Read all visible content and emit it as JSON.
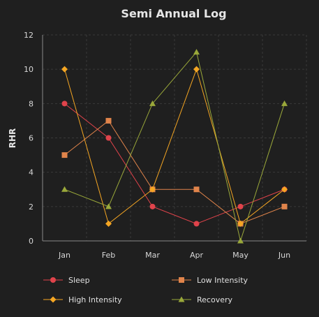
{
  "chart_data": {
    "type": "line",
    "title": "Semi Annual Log",
    "xlabel": "",
    "ylabel": "RHR",
    "categories": [
      "Jan",
      "Feb",
      "Mar",
      "Apr",
      "May",
      "Jun"
    ],
    "ylim": [
      0,
      12
    ],
    "yticks": [
      0,
      2,
      4,
      6,
      8,
      10,
      12
    ],
    "grid": true,
    "legend_position": "bottom",
    "series": [
      {
        "name": "Sleep",
        "values": [
          8,
          6,
          2,
          1,
          2,
          3
        ],
        "color": "#e0434b",
        "marker": "circle"
      },
      {
        "name": "Low Intensity",
        "values": [
          5,
          7,
          3,
          3,
          1,
          2
        ],
        "color": "#e0844b",
        "marker": "square"
      },
      {
        "name": "High Intensity",
        "values": [
          10,
          1,
          3,
          10,
          1,
          3
        ],
        "color": "#f5a623",
        "marker": "diamond"
      },
      {
        "name": "Recovery",
        "values": [
          3,
          2,
          8,
          11,
          0,
          8
        ],
        "color": "#9aa83a",
        "marker": "triangle"
      }
    ]
  }
}
